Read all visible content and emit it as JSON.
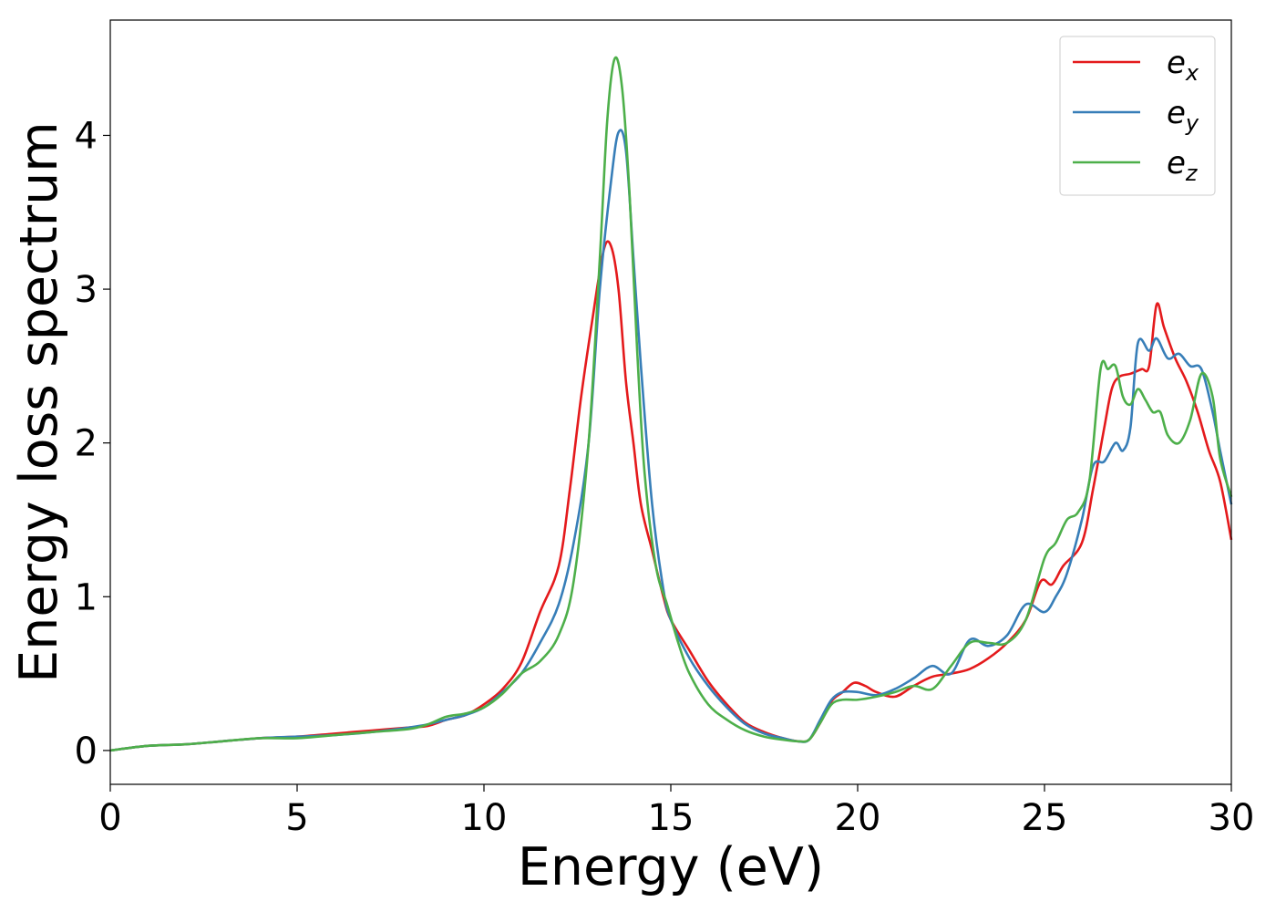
{
  "chart_data": {
    "type": "line",
    "title": "",
    "xlabel": "Energy (eV)",
    "ylabel": "Energy loss spectrum",
    "xlim": [
      0,
      30
    ],
    "ylim": [
      -0.22,
      4.75
    ],
    "xticks": [
      0,
      5,
      10,
      15,
      20,
      25,
      30
    ],
    "yticks": [
      0,
      1,
      2,
      3,
      4
    ],
    "xtick_labels": [
      "0",
      "5",
      "10",
      "15",
      "20",
      "25",
      "30"
    ],
    "ytick_labels": [
      "0",
      "1",
      "2",
      "3",
      "4"
    ],
    "grid": false,
    "legend": "top-right",
    "series": [
      {
        "name": "e_x",
        "label_base": "e",
        "label_sub": "x",
        "color": "#e41a1c",
        "x": [
          0,
          1,
          2,
          3,
          4,
          5,
          6,
          7,
          8,
          8.5,
          9,
          9.5,
          10,
          10.5,
          11,
          11.5,
          12,
          12.3,
          12.6,
          12.9,
          13.2,
          13.4,
          13.6,
          13.8,
          14.0,
          14.2,
          14.5,
          14.8,
          15.0,
          15.5,
          16,
          16.5,
          17,
          17.5,
          18,
          18.4,
          18.7,
          19,
          19.3,
          19.6,
          19.9,
          20.2,
          20.5,
          21,
          21.5,
          22,
          22.5,
          23,
          23.5,
          24,
          24.5,
          24.9,
          25.2,
          25.5,
          26,
          26.3,
          26.6,
          26.8,
          27.0,
          27.3,
          27.6,
          27.8,
          28.0,
          28.2,
          28.5,
          28.8,
          29.1,
          29.4,
          29.7,
          30
        ],
        "values": [
          0.0,
          0.03,
          0.04,
          0.06,
          0.08,
          0.09,
          0.11,
          0.13,
          0.15,
          0.16,
          0.2,
          0.23,
          0.3,
          0.4,
          0.57,
          0.9,
          1.2,
          1.7,
          2.3,
          2.8,
          3.25,
          3.28,
          3.0,
          2.4,
          2.0,
          1.6,
          1.3,
          1.0,
          0.85,
          0.65,
          0.45,
          0.3,
          0.18,
          0.12,
          0.08,
          0.06,
          0.07,
          0.18,
          0.32,
          0.38,
          0.44,
          0.42,
          0.38,
          0.35,
          0.42,
          0.48,
          0.5,
          0.53,
          0.6,
          0.7,
          0.85,
          1.1,
          1.08,
          1.2,
          1.35,
          1.7,
          2.1,
          2.35,
          2.43,
          2.45,
          2.48,
          2.5,
          2.9,
          2.75,
          2.55,
          2.4,
          2.2,
          1.95,
          1.75,
          1.37
        ]
      },
      {
        "name": "e_y",
        "label_base": "e",
        "label_sub": "y",
        "color": "#377eb8",
        "x": [
          0,
          1,
          2,
          3,
          4,
          5,
          6,
          7,
          8,
          8.5,
          9,
          9.5,
          10,
          10.5,
          11,
          11.5,
          12,
          12.4,
          12.8,
          13.1,
          13.4,
          13.6,
          13.8,
          14.0,
          14.2,
          14.5,
          14.8,
          15.0,
          15.5,
          16,
          16.5,
          17,
          17.5,
          18,
          18.4,
          18.7,
          19,
          19.3,
          19.6,
          20,
          20.5,
          21,
          21.5,
          22,
          22.5,
          23,
          23.5,
          24,
          24.5,
          25,
          25.3,
          25.6,
          26,
          26.3,
          26.6,
          26.9,
          27.1,
          27.3,
          27.5,
          27.8,
          28.0,
          28.3,
          28.6,
          28.9,
          29.2,
          29.5,
          29.7,
          30
        ],
        "values": [
          0.0,
          0.03,
          0.04,
          0.06,
          0.08,
          0.09,
          0.1,
          0.12,
          0.15,
          0.17,
          0.2,
          0.23,
          0.28,
          0.38,
          0.5,
          0.7,
          0.95,
          1.35,
          2.0,
          3.0,
          3.7,
          4.02,
          3.9,
          3.2,
          2.5,
          1.6,
          1.05,
          0.85,
          0.6,
          0.42,
          0.28,
          0.17,
          0.11,
          0.08,
          0.06,
          0.07,
          0.2,
          0.33,
          0.38,
          0.38,
          0.36,
          0.4,
          0.47,
          0.55,
          0.5,
          0.72,
          0.68,
          0.75,
          0.95,
          0.9,
          1.0,
          1.15,
          1.5,
          1.85,
          1.88,
          2.0,
          1.95,
          2.1,
          2.65,
          2.6,
          2.68,
          2.55,
          2.58,
          2.5,
          2.48,
          2.2,
          1.95,
          1.6
        ]
      },
      {
        "name": "e_z",
        "label_base": "e",
        "label_sub": "z",
        "color": "#4daf4a",
        "x": [
          0,
          1,
          2,
          3,
          4,
          5,
          6,
          7,
          8,
          8.5,
          9,
          9.5,
          10,
          10.5,
          11,
          11.5,
          12,
          12.4,
          12.8,
          13.1,
          13.3,
          13.5,
          13.7,
          13.9,
          14.1,
          14.3,
          14.6,
          14.9,
          15.2,
          15.5,
          16,
          16.5,
          17,
          17.5,
          18,
          18.4,
          18.7,
          19,
          19.3,
          19.6,
          20,
          20.5,
          21,
          21.5,
          22,
          22.5,
          23,
          23.5,
          24,
          24.5,
          25,
          25.3,
          25.6,
          25.9,
          26.2,
          26.5,
          26.7,
          26.9,
          27.1,
          27.3,
          27.5,
          27.7,
          27.9,
          28.1,
          28.3,
          28.6,
          28.9,
          29.2,
          29.5,
          29.7,
          30
        ],
        "values": [
          0.0,
          0.03,
          0.04,
          0.06,
          0.08,
          0.08,
          0.1,
          0.12,
          0.14,
          0.17,
          0.22,
          0.24,
          0.28,
          0.37,
          0.5,
          0.58,
          0.75,
          1.1,
          2.0,
          3.2,
          4.1,
          4.5,
          4.3,
          3.6,
          2.6,
          1.8,
          1.2,
          0.95,
          0.7,
          0.5,
          0.3,
          0.2,
          0.13,
          0.09,
          0.07,
          0.06,
          0.07,
          0.18,
          0.3,
          0.33,
          0.33,
          0.35,
          0.38,
          0.42,
          0.4,
          0.55,
          0.7,
          0.7,
          0.7,
          0.85,
          1.25,
          1.35,
          1.5,
          1.55,
          1.75,
          2.48,
          2.48,
          2.5,
          2.3,
          2.25,
          2.35,
          2.28,
          2.2,
          2.2,
          2.05,
          2.0,
          2.15,
          2.45,
          2.3,
          1.9,
          1.65
        ]
      }
    ]
  }
}
